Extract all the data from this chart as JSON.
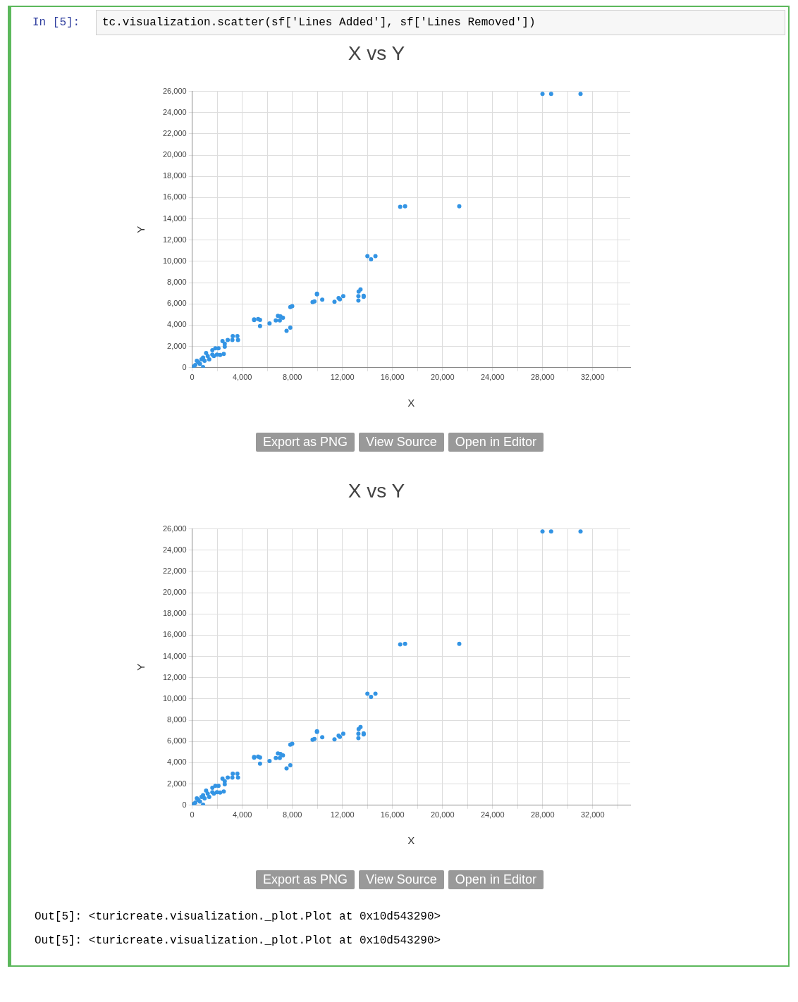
{
  "chart_data": [
    {
      "type": "scatter",
      "title": "X vs Y",
      "xlabel": "X",
      "ylabel": "Y",
      "color": "#3394e4",
      "marker": "circle",
      "grid": true,
      "legend": false,
      "x": [
        27990,
        28680,
        31030,
        16620,
        17010,
        21340,
        14000,
        14290,
        14640,
        13300,
        13450,
        13280,
        13280,
        13700,
        13700,
        12070,
        11700,
        11800,
        11370,
        10390,
        9970,
        9970,
        9620,
        9770,
        7990,
        7840,
        7840,
        7540,
        6850,
        7050,
        7250,
        6680,
        7000,
        6180,
        5420,
        4950,
        4950,
        5270,
        5420,
        3240,
        3610,
        3660,
        3210,
        2840,
        2600,
        2420,
        2600,
        2520,
        1610,
        1850,
        2100,
        370,
        870,
        1240,
        1610,
        1980,
        2230,
        990,
        620,
        250,
        0,
        120,
        870,
        490,
        1360,
        1730,
        1110,
        740
      ],
      "values": [
        25760,
        25760,
        25760,
        15130,
        15190,
        15190,
        10490,
        10190,
        10490,
        7170,
        7370,
        6730,
        6320,
        6760,
        6670,
        6730,
        6550,
        6430,
        6200,
        6400,
        6960,
        6900,
        6170,
        6230,
        5790,
        5700,
        3760,
        3470,
        4880,
        4820,
        4700,
        4440,
        4440,
        4170,
        3910,
        4550,
        4470,
        4580,
        4490,
        2970,
        2970,
        2610,
        2610,
        2610,
        2260,
        2500,
        1970,
        1290,
        1650,
        1820,
        1820,
        650,
        940,
        1090,
        1230,
        1230,
        1200,
        650,
        350,
        260,
        0,
        120,
        60,
        500,
        790,
        1090,
        1380,
        790
      ],
      "xlim": [
        0,
        35000
      ],
      "xticks": [
        0,
        {
          "value": 2000,
          "label": null
        },
        {
          "value": 4000,
          "label": "4,000"
        },
        {
          "value": 6000,
          "label": null
        },
        {
          "value": 8000,
          "label": "8,000"
        },
        {
          "value": 10000,
          "label": null
        },
        {
          "value": 12000,
          "label": "12,000"
        },
        {
          "value": 14000,
          "label": null
        },
        {
          "value": 16000,
          "label": "16,000"
        },
        {
          "value": 18000,
          "label": null
        },
        {
          "value": 20000,
          "label": "20,000"
        },
        {
          "value": 22000,
          "label": null
        },
        {
          "value": 24000,
          "label": "24,000"
        },
        {
          "value": 26000,
          "label": null
        },
        {
          "value": 28000,
          "label": "28,000"
        },
        {
          "value": 30000,
          "label": null
        },
        {
          "value": 32000,
          "label": "32,000"
        },
        {
          "value": 34000,
          "label": null
        }
      ],
      "ylim": [
        0,
        26000
      ],
      "yticks": [
        0,
        {
          "value": 2000,
          "label": "2,000"
        },
        {
          "value": 4000,
          "label": "4,000"
        },
        {
          "value": 6000,
          "label": "6,000"
        },
        {
          "value": 8000,
          "label": "8,000"
        },
        {
          "value": 10000,
          "label": "10,000"
        },
        {
          "value": 12000,
          "label": "12,000"
        },
        {
          "value": 14000,
          "label": "14,000"
        },
        {
          "value": 16000,
          "label": "16,000"
        },
        {
          "value": 18000,
          "label": "18,000"
        },
        {
          "value": 20000,
          "label": "20,000"
        },
        {
          "value": 22000,
          "label": "22,000"
        },
        {
          "value": 24000,
          "label": "24,000"
        },
        {
          "value": 26000,
          "label": "26,000"
        }
      ],
      "annotations": [
        "In [5]:",
        "tc.visualization.scatter(sf['Lines Added'], sf['Lines Removed'])",
        "Export as PNG",
        "View Source",
        "Open in Editor"
      ]
    },
    {
      "type": "scatter",
      "title": "X vs Y",
      "xlabel": "X",
      "ylabel": "Y",
      "color": "#3394e4",
      "marker": "circle",
      "grid": true,
      "legend": false,
      "x": [
        27990,
        28680,
        31030,
        16620,
        17010,
        21340,
        14000,
        14290,
        14640,
        13300,
        13450,
        13280,
        13280,
        13700,
        13700,
        12070,
        11700,
        11800,
        11370,
        10390,
        9970,
        9970,
        9620,
        9770,
        7990,
        7840,
        7840,
        7540,
        6850,
        7050,
        7250,
        6680,
        7000,
        6180,
        5420,
        4950,
        4950,
        5270,
        5420,
        3240,
        3610,
        3660,
        3210,
        2840,
        2600,
        2420,
        2600,
        2520,
        1610,
        1850,
        2100,
        370,
        870,
        1240,
        1610,
        1980,
        2230,
        990,
        620,
        250,
        0,
        120,
        870,
        490,
        1360,
        1730,
        1110,
        740
      ],
      "values": [
        25760,
        25760,
        25760,
        15130,
        15190,
        15190,
        10490,
        10190,
        10490,
        7170,
        7370,
        6730,
        6320,
        6760,
        6670,
        6730,
        6550,
        6430,
        6200,
        6400,
        6960,
        6900,
        6170,
        6230,
        5790,
        5700,
        3760,
        3470,
        4880,
        4820,
        4700,
        4440,
        4440,
        4170,
        3910,
        4550,
        4470,
        4580,
        4490,
        2970,
        2970,
        2610,
        2610,
        2610,
        2260,
        2500,
        1970,
        1290,
        1650,
        1820,
        1820,
        650,
        940,
        1090,
        1230,
        1230,
        1200,
        650,
        350,
        260,
        0,
        120,
        60,
        500,
        790,
        1090,
        1380,
        790
      ],
      "xlim": [
        0,
        35000
      ],
      "xticks": [
        0,
        {
          "value": 2000,
          "label": null
        },
        {
          "value": 4000,
          "label": "4,000"
        },
        {
          "value": 6000,
          "label": null
        },
        {
          "value": 8000,
          "label": "8,000"
        },
        {
          "value": 10000,
          "label": null
        },
        {
          "value": 12000,
          "label": "12,000"
        },
        {
          "value": 14000,
          "label": null
        },
        {
          "value": 16000,
          "label": "16,000"
        },
        {
          "value": 18000,
          "label": null
        },
        {
          "value": 20000,
          "label": "20,000"
        },
        {
          "value": 22000,
          "label": null
        },
        {
          "value": 24000,
          "label": "24,000"
        },
        {
          "value": 26000,
          "label": null
        },
        {
          "value": 28000,
          "label": "28,000"
        },
        {
          "value": 30000,
          "label": null
        },
        {
          "value": 32000,
          "label": "32,000"
        },
        {
          "value": 34000,
          "label": null
        }
      ],
      "ylim": [
        0,
        26000
      ],
      "yticks": [
        0,
        {
          "value": 2000,
          "label": "2,000"
        },
        {
          "value": 4000,
          "label": "4,000"
        },
        {
          "value": 6000,
          "label": "6,000"
        },
        {
          "value": 8000,
          "label": "8,000"
        },
        {
          "value": 10000,
          "label": "10,000"
        },
        {
          "value": 12000,
          "label": "12,000"
        },
        {
          "value": 14000,
          "label": "14,000"
        },
        {
          "value": 16000,
          "label": "16,000"
        },
        {
          "value": 18000,
          "label": "18,000"
        },
        {
          "value": 20000,
          "label": "20,000"
        },
        {
          "value": 22000,
          "label": "22,000"
        },
        {
          "value": 24000,
          "label": "24,000"
        },
        {
          "value": 26000,
          "label": "26,000"
        }
      ],
      "annotations": [
        "Export as PNG",
        "View Source",
        "Open in Editor",
        "Out[5]: <turicreate.visualization._plot.Plot at 0x10d543290>",
        "Out[5]: <turicreate.visualization._plot.Plot at 0x10d543290>"
      ]
    }
  ]
}
